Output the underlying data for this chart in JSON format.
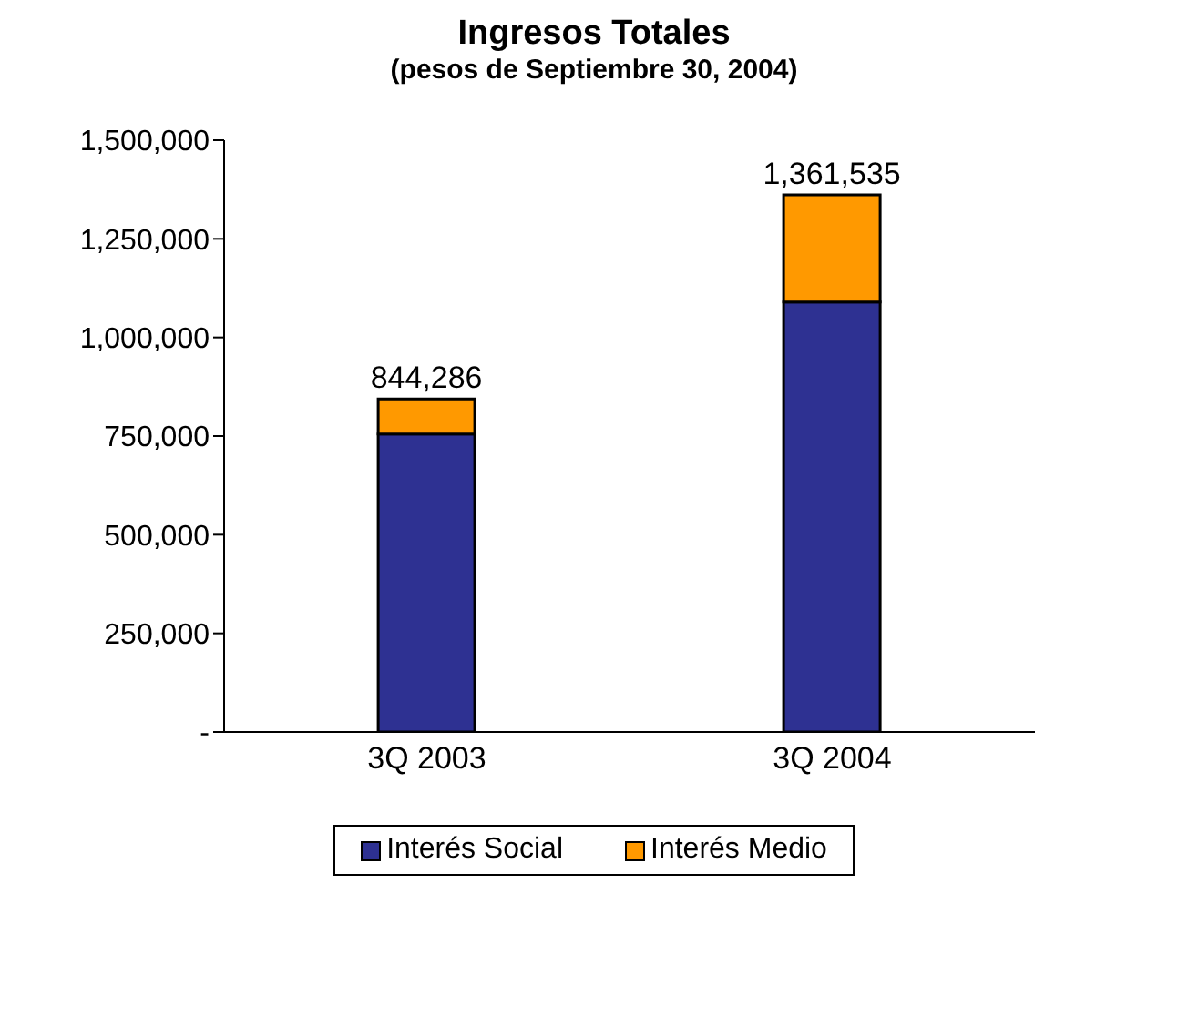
{
  "chart_data": {
    "type": "bar",
    "title": "Ingresos Totales",
    "subtitle": "(pesos de Septiembre 30, 2004)",
    "categories": [
      "3Q 2003",
      "3Q 2004"
    ],
    "stacked": true,
    "series": [
      {
        "name": "Interés Social",
        "color": "#2e3192",
        "values": [
          755000,
          1090000
        ]
      },
      {
        "name": "Interés Medio",
        "color": "#ff9900",
        "values": [
          89286,
          271535
        ]
      }
    ],
    "totals": [
      "844,286",
      "1,361,535"
    ],
    "ylim": [
      0,
      1500000
    ],
    "yticks": [
      {
        "value": 0,
        "label": "-"
      },
      {
        "value": 250000,
        "label": "250,000"
      },
      {
        "value": 500000,
        "label": "500,000"
      },
      {
        "value": 750000,
        "label": "750,000"
      },
      {
        "value": 1000000,
        "label": "1,000,000"
      },
      {
        "value": 1250000,
        "label": "1,250,000"
      },
      {
        "value": 1500000,
        "label": "1,500,000"
      }
    ],
    "grid": false,
    "legend": "bottom"
  }
}
